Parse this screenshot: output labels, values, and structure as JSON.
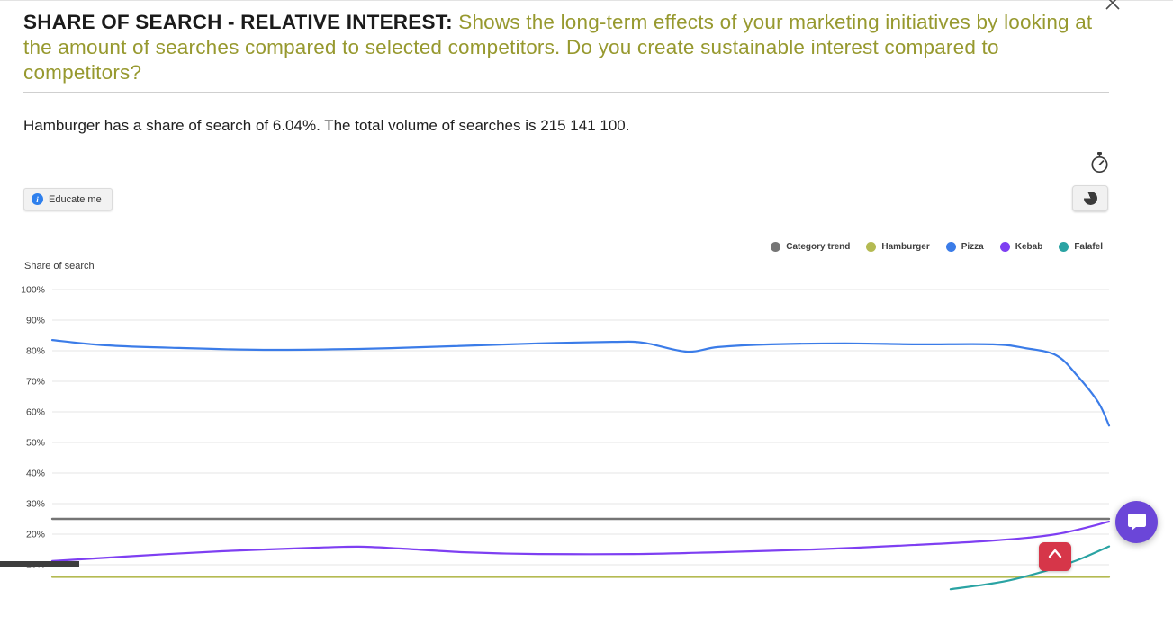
{
  "header": {
    "title": "SHARE OF SEARCH - RELATIVE INTEREST:",
    "description": "Shows the long-term effects of your marketing initiatives by looking at the amount of searches compared to selected competitors. Do you create sustainable interest compared to competitors?"
  },
  "summary": {
    "text": "Hamburger has a share of search of 6.04%. The total volume of searches is 215 141 100."
  },
  "toolbar": {
    "educate_label": "Educate me"
  },
  "colors": {
    "title_accent": "#97992f",
    "info_icon": "#2f80ed",
    "scroll_top_button": "#d63649",
    "chat_button": "#6b46d8"
  },
  "chart_data": {
    "type": "line",
    "axis_label": "Share of search",
    "ylim": [
      0,
      100
    ],
    "grid": true,
    "xaxis_visible": false,
    "legend_position": "top-right",
    "yticks": [
      100,
      90,
      80,
      70,
      60,
      50,
      40,
      30,
      20,
      10
    ],
    "ytick_labels": [
      "100%",
      "90%",
      "80%",
      "70%",
      "60%",
      "50%",
      "40%",
      "30%",
      "20%",
      "10%"
    ],
    "series": [
      {
        "name": "Category trend",
        "color": "#757575",
        "x": [
          0,
          100
        ],
        "values": [
          25,
          25
        ]
      },
      {
        "name": "Hamburger",
        "color": "#b4ba52",
        "x": [
          0,
          100
        ],
        "values": [
          6.04,
          6.04
        ]
      },
      {
        "name": "Pizza",
        "color": "#3b7ce8",
        "x": [
          0,
          5,
          12,
          20,
          29,
          38,
          46,
          53,
          56,
          60,
          63,
          68,
          75,
          82,
          89,
          92,
          95,
          97,
          99,
          100
        ],
        "values": [
          83.5,
          81.8,
          80.9,
          80.3,
          80.6,
          81.5,
          82.4,
          82.9,
          82.6,
          79.7,
          81.2,
          82.1,
          82.4,
          82.1,
          82.1,
          80.9,
          78.5,
          71.8,
          63.0,
          55.5
        ]
      },
      {
        "name": "Kebab",
        "color": "#7e3ff2",
        "x": [
          0,
          8,
          16,
          25,
          29,
          33,
          39,
          46,
          55,
          63,
          72,
          80,
          89,
          95,
          100
        ],
        "values": [
          11.2,
          12.9,
          14.4,
          15.6,
          15.9,
          15.3,
          14.1,
          13.5,
          13.5,
          14.1,
          15.0,
          16.2,
          17.9,
          20.0,
          24.1
        ]
      },
      {
        "name": "Falafel",
        "color": "#2aa3a3",
        "x": [
          85,
          90,
          94,
          97,
          100
        ],
        "values": [
          2,
          4.5,
          8,
          11.5,
          16
        ]
      }
    ]
  }
}
